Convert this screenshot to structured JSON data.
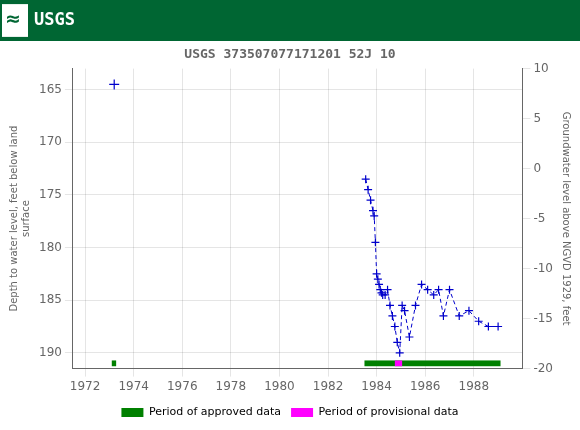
{
  "chart_data": {
    "type": "line",
    "header": {
      "symbol": "≈",
      "text": "USGS",
      "color": "#006633"
    },
    "title": "USGS 373507077171201 52J 10",
    "ylabel": "Depth to water level, feet below land\nsurface",
    "y2label": "Groundwater level above NGVD 1929, feet",
    "xlim": [
      1971.5,
      1990.0
    ],
    "xticks": [
      1972,
      1974,
      1976,
      1978,
      1980,
      1982,
      1984,
      1986,
      1988
    ],
    "ylim": [
      191.5,
      163.0
    ],
    "yticks": [
      165,
      170,
      175,
      180,
      185,
      190
    ],
    "y2lim": [
      -20,
      10
    ],
    "y2ticks": [
      10,
      5,
      0,
      -5,
      -10,
      -15,
      -20
    ],
    "grid": true,
    "legend": "bottom",
    "series": [
      {
        "x": [
          1973.2
        ],
        "values": [
          164.5
        ],
        "color": "#0000cc",
        "marker": "plus",
        "line_style": "none"
      },
      {
        "x": [
          1983.55,
          1983.65,
          1983.75,
          1983.85,
          1983.9,
          1983.95,
          1984.0,
          1984.05,
          1984.1,
          1984.15,
          1984.2,
          1984.25,
          1984.35,
          1984.45,
          1984.55,
          1984.65,
          1984.75,
          1984.85,
          1984.95,
          1985.05,
          1985.15,
          1985.35,
          1985.6,
          1985.85,
          1986.1,
          1986.35,
          1986.55,
          1986.75,
          1987.0,
          1987.4,
          1987.8,
          1988.2,
          1988.6,
          1989.0
        ],
        "values": [
          173.5,
          174.5,
          175.5,
          176.5,
          177.0,
          179.5,
          182.5,
          183.0,
          183.5,
          184.0,
          184.3,
          184.5,
          184.5,
          184.0,
          185.5,
          186.5,
          187.5,
          189.0,
          190.0,
          185.5,
          186.0,
          188.5,
          185.5,
          183.5,
          184.0,
          184.5,
          184.0,
          186.5,
          184.0,
          186.5,
          186.0,
          187.0,
          187.5,
          187.5
        ],
        "color": "#0000cc",
        "marker": "plus",
        "line_style": "dashed"
      }
    ],
    "periods": [
      {
        "name": "Period of approved data",
        "color": "#008000",
        "ranges": [
          [
            1973.1,
            1973.28
          ],
          [
            1983.5,
            1989.1
          ]
        ]
      },
      {
        "name": "Period of provisional data",
        "color": "#ff00ff",
        "ranges": [
          [
            1984.75,
            1985.05
          ]
        ]
      }
    ],
    "period_y": 191.0,
    "period_height": 0.55
  }
}
